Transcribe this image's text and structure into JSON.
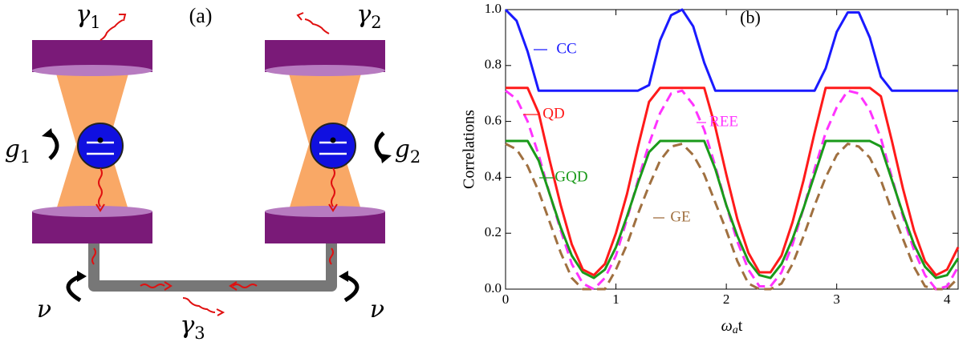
{
  "diagram": {
    "panel_label": "(a)",
    "labels": [
      {
        "symbol": "γ",
        "subscript": "1"
      },
      {
        "symbol": "γ",
        "subscript": "2"
      },
      {
        "symbol": "g",
        "subscript": "1"
      },
      {
        "symbol": "g",
        "subscript": "2"
      },
      {
        "symbol": "ν"
      },
      {
        "symbol": "ν"
      },
      {
        "symbol": "γ",
        "subscript": "3"
      }
    ]
  },
  "chart_data": {
    "type": "line",
    "panel_label": "(b)",
    "y_label": "Correlations",
    "x_label": {
      "symbol": "ω",
      "subscript": "a",
      "rest": "t"
    },
    "x": [
      0,
      0.1,
      0.2,
      0.3,
      0.4,
      0.5,
      0.6,
      0.7,
      0.8,
      0.9,
      1.0,
      1.1,
      1.2,
      1.3,
      1.4,
      1.5,
      1.6,
      1.7,
      1.8,
      1.9,
      2.0,
      2.1,
      2.2,
      2.3,
      2.4,
      2.5,
      2.6,
      2.7,
      2.8,
      2.9,
      3.0,
      3.1,
      3.2,
      3.3,
      3.4,
      3.5,
      3.6,
      3.7,
      3.8,
      3.9,
      4.0,
      4.1
    ],
    "series": [
      {
        "name": "CC",
        "color": "#1a1aff",
        "dashed": false,
        "values": [
          1,
          0.96,
          0.85,
          0.71,
          0.71,
          0.71,
          0.71,
          0.71,
          0.71,
          0.71,
          0.71,
          0.71,
          0.71,
          0.73,
          0.89,
          0.98,
          1,
          0.94,
          0.81,
          0.71,
          0.71,
          0.71,
          0.71,
          0.71,
          0.71,
          0.71,
          0.71,
          0.71,
          0.71,
          0.79,
          0.92,
          0.99,
          0.99,
          0.9,
          0.76,
          0.71,
          0.71,
          0.71,
          0.71,
          0.71,
          0.71,
          0.71
        ]
      },
      {
        "name": "QD",
        "color": "#ff1a1a",
        "dashed": false,
        "values": [
          0.72,
          0.72,
          0.72,
          0.63,
          0.46,
          0.3,
          0.16,
          0.07,
          0.05,
          0.09,
          0.2,
          0.34,
          0.51,
          0.67,
          0.72,
          0.72,
          0.72,
          0.72,
          0.72,
          0.58,
          0.41,
          0.25,
          0.13,
          0.06,
          0.06,
          0.12,
          0.24,
          0.39,
          0.56,
          0.72,
          0.72,
          0.72,
          0.72,
          0.72,
          0.69,
          0.53,
          0.36,
          0.21,
          0.1,
          0.05,
          0.07,
          0.15
        ]
      },
      {
        "name": "REE",
        "color": "#ff33ff",
        "dashed": true,
        "values": [
          0.71,
          0.68,
          0.6,
          0.48,
          0.34,
          0.21,
          0.09,
          0.02,
          0,
          0.04,
          0.12,
          0.25,
          0.39,
          0.52,
          0.63,
          0.7,
          0.71,
          0.66,
          0.57,
          0.44,
          0.3,
          0.17,
          0.07,
          0.01,
          0.01,
          0.06,
          0.16,
          0.29,
          0.43,
          0.56,
          0.65,
          0.71,
          0.7,
          0.64,
          0.54,
          0.4,
          0.26,
          0.14,
          0.05,
          0,
          0.01,
          0.08
        ]
      },
      {
        "name": "GQD",
        "color": "#1a9a1a",
        "dashed": false,
        "values": [
          0.53,
          0.53,
          0.53,
          0.46,
          0.34,
          0.22,
          0.12,
          0.06,
          0.04,
          0.07,
          0.15,
          0.26,
          0.38,
          0.49,
          0.53,
          0.53,
          0.53,
          0.53,
          0.53,
          0.43,
          0.3,
          0.19,
          0.1,
          0.05,
          0.04,
          0.09,
          0.18,
          0.29,
          0.41,
          0.53,
          0.53,
          0.53,
          0.53,
          0.53,
          0.51,
          0.39,
          0.27,
          0.16,
          0.08,
          0.04,
          0.05,
          0.11
        ]
      },
      {
        "name": "GE",
        "color": "#a07040",
        "dashed": true,
        "values": [
          0.52,
          0.5,
          0.44,
          0.35,
          0.24,
          0.13,
          0.04,
          0,
          0,
          0,
          0.07,
          0.16,
          0.27,
          0.37,
          0.46,
          0.51,
          0.52,
          0.48,
          0.41,
          0.31,
          0.21,
          0.1,
          0.02,
          0,
          0,
          0.02,
          0.09,
          0.19,
          0.3,
          0.4,
          0.48,
          0.52,
          0.51,
          0.47,
          0.39,
          0.28,
          0.18,
          0.08,
          0.01,
          0,
          0,
          0.04
        ]
      }
    ],
    "xlim": [
      0,
      4.1
    ],
    "xticks": [
      0,
      1,
      2,
      3,
      4
    ],
    "ylim": [
      0,
      1
    ],
    "yticks": [
      {
        "value": 0,
        "label": "0.0"
      },
      0.2,
      0.4,
      0.6,
      0.8,
      {
        "value": 1,
        "label": "1.0"
      }
    ]
  }
}
